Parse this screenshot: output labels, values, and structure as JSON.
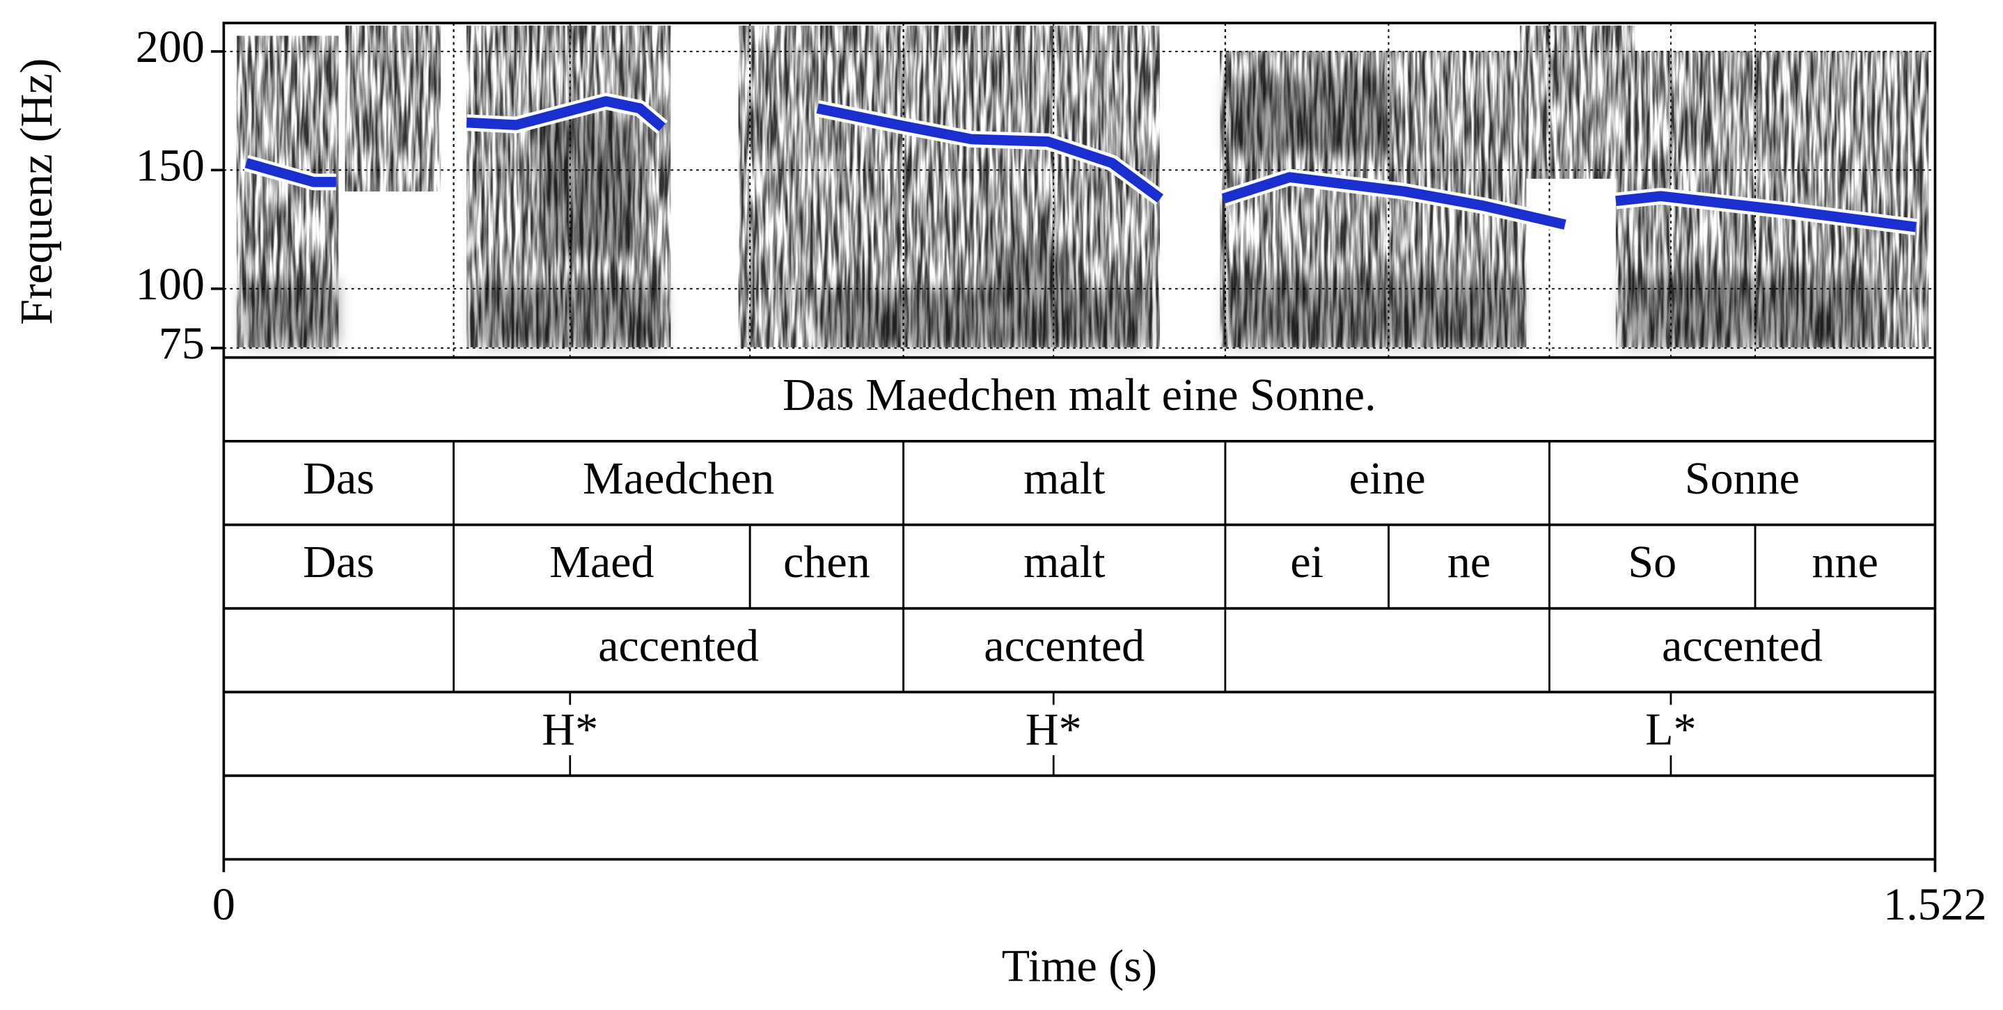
{
  "chart_data": {
    "type": "pitch",
    "x_label": "Time (s)",
    "y_label": "Frequenz (Hz)",
    "xlim": [
      0,
      1.522
    ],
    "xticks": [
      0,
      1.522
    ],
    "ylim": [
      71,
      212
    ],
    "yticks": [
      75,
      100,
      150,
      200
    ],
    "grid": true,
    "color": "#1a2fd0",
    "x": [
      0.02,
      0.05,
      0.08,
      0.1,
      null,
      0.216,
      0.26,
      0.3,
      0.34,
      0.37,
      0.39,
      null,
      0.528,
      0.6,
      0.665,
      0.733,
      0.79,
      0.833,
      null,
      0.889,
      0.948,
      1.05,
      1.12,
      1.193,
      null,
      1.238,
      1.278,
      1.39,
      1.505
    ],
    "values": [
      153,
      149,
      145,
      145,
      null,
      170,
      169,
      174,
      179,
      176,
      168,
      null,
      176,
      169,
      163,
      162,
      153,
      138,
      null,
      138,
      147,
      141,
      135,
      127,
      null,
      137,
      139,
      133,
      126
    ],
    "tiers": [
      {
        "intervals": [
          {
            "start": 0,
            "end": 1.522,
            "text": "Das Maedchen malt eine Sonne."
          }
        ]
      },
      {
        "intervals": [
          {
            "start": 0,
            "end": 0.2045,
            "text": "Das"
          },
          {
            "start": 0.2045,
            "end": 0.6045,
            "text": "Maedchen"
          },
          {
            "start": 0.6045,
            "end": 0.8907,
            "text": "malt"
          },
          {
            "start": 0.8907,
            "end": 1.179,
            "text": "eine"
          },
          {
            "start": 1.179,
            "end": 1.522,
            "text": "Sonne"
          }
        ]
      },
      {
        "intervals": [
          {
            "start": 0,
            "end": 0.2045,
            "text": "Das"
          },
          {
            "start": 0.2045,
            "end": 0.468,
            "text": "Maed"
          },
          {
            "start": 0.468,
            "end": 0.6045,
            "text": "chen"
          },
          {
            "start": 0.6045,
            "end": 0.8907,
            "text": "malt"
          },
          {
            "start": 0.8907,
            "end": 1.036,
            "text": "ei"
          },
          {
            "start": 1.036,
            "end": 1.179,
            "text": "ne"
          },
          {
            "start": 1.179,
            "end": 1.362,
            "text": "So"
          },
          {
            "start": 1.362,
            "end": 1.522,
            "text": "nne"
          }
        ]
      },
      {
        "intervals": [
          {
            "start": 0.2045,
            "end": 0.6045,
            "text": "accented"
          },
          {
            "start": 0.6045,
            "end": 0.8907,
            "text": "accented"
          },
          {
            "start": 1.179,
            "end": 1.522,
            "text": "accented"
          }
        ]
      },
      {
        "points": [
          {
            "time": 0.308,
            "text": "H*"
          },
          {
            "time": 0.738,
            "text": "H*"
          },
          {
            "time": 1.287,
            "text": "L*"
          }
        ]
      }
    ]
  }
}
